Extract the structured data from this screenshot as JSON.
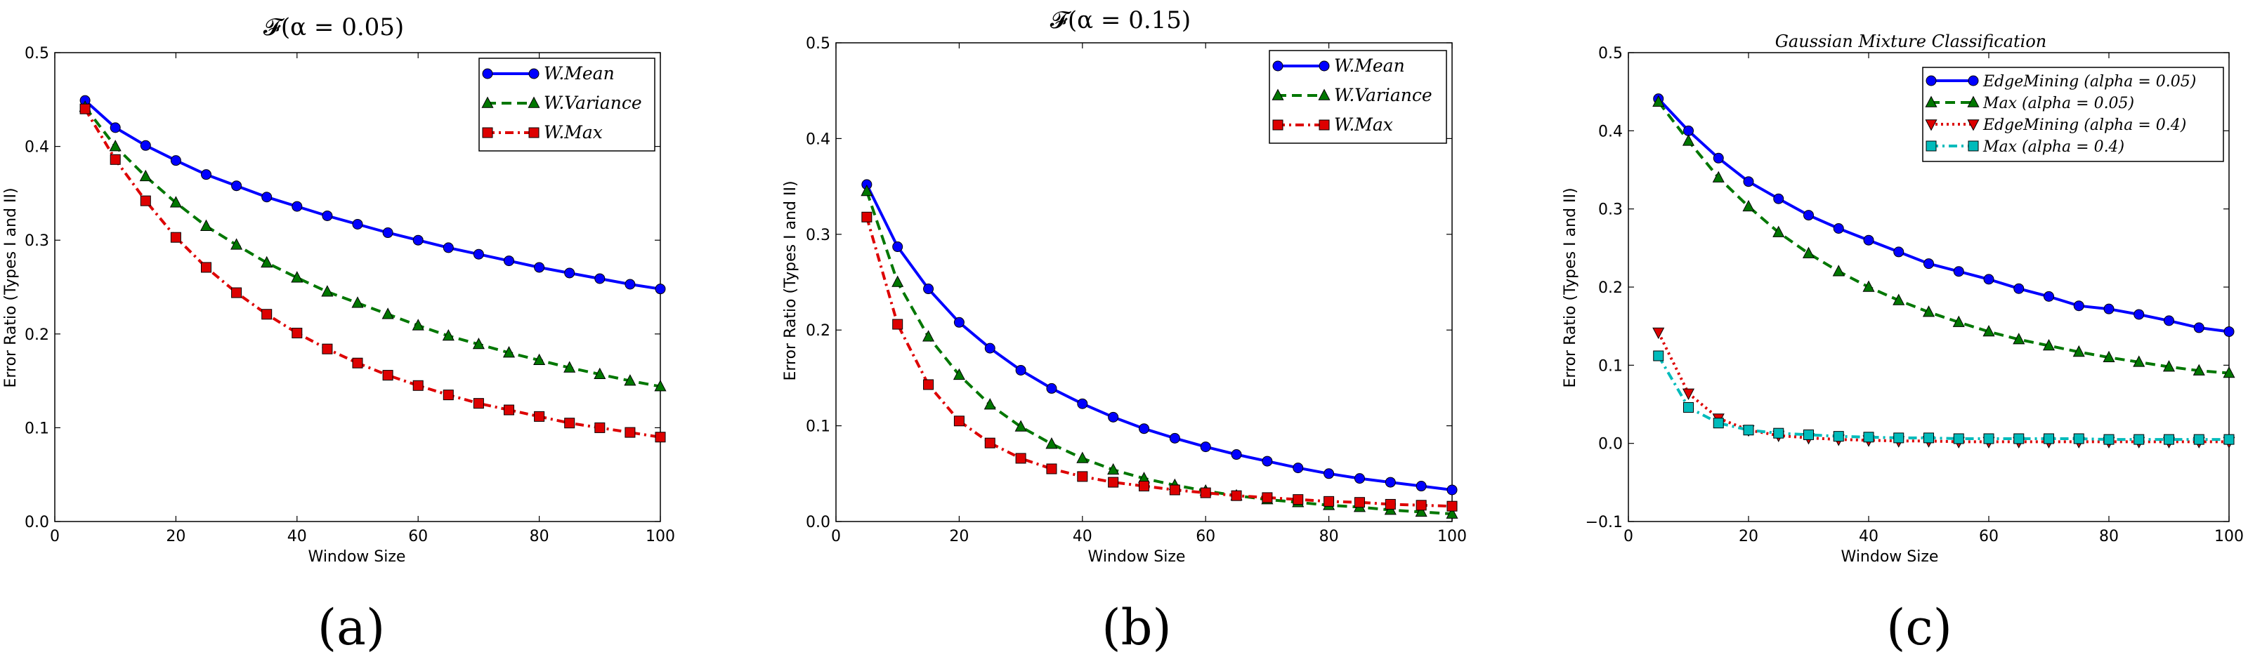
{
  "chart_data": [
    {
      "type": "line",
      "panel": "a",
      "title": "𝓕(α = 0.05)",
      "caption": "(a)",
      "xlabel": "Window Size",
      "ylabel": "Error Ratio (Types I and II)",
      "xlim": [
        0,
        100
      ],
      "ylim": [
        0.0,
        0.5
      ],
      "xticks": [
        0,
        20,
        40,
        60,
        80,
        100
      ],
      "yticks": [
        0.0,
        0.1,
        0.2,
        0.3,
        0.4,
        0.5
      ],
      "ytick_labels": [
        "0.0",
        "0.1",
        "0.2",
        "0.3",
        "0.4",
        "0.5"
      ],
      "legend_position": "top-right",
      "x": [
        5,
        10,
        15,
        20,
        25,
        30,
        35,
        40,
        45,
        50,
        55,
        60,
        65,
        70,
        75,
        80,
        85,
        90,
        95,
        100
      ],
      "series": [
        {
          "name": "W.Mean",
          "color": "#0000ff",
          "marker": "circle",
          "dash": "solid",
          "values": [
            0.449,
            0.42,
            0.401,
            0.385,
            0.37,
            0.358,
            0.346,
            0.336,
            0.326,
            0.317,
            0.308,
            0.3,
            0.292,
            0.285,
            0.278,
            0.271,
            0.265,
            0.259,
            0.253,
            0.248
          ]
        },
        {
          "name": "W.Variance",
          "color": "#007700",
          "marker": "triangle-up",
          "dash": "dashed",
          "values": [
            0.442,
            0.4,
            0.368,
            0.34,
            0.315,
            0.295,
            0.276,
            0.26,
            0.245,
            0.233,
            0.221,
            0.209,
            0.198,
            0.189,
            0.18,
            0.172,
            0.164,
            0.157,
            0.15,
            0.144
          ]
        },
        {
          "name": "W.Max",
          "color": "#dd0000",
          "marker": "square",
          "dash": "dashdot",
          "values": [
            0.44,
            0.386,
            0.342,
            0.303,
            0.271,
            0.244,
            0.221,
            0.201,
            0.184,
            0.169,
            0.156,
            0.145,
            0.135,
            0.126,
            0.119,
            0.112,
            0.105,
            0.1,
            0.095,
            0.09
          ]
        }
      ]
    },
    {
      "type": "line",
      "panel": "b",
      "title": "𝓕(α = 0.15)",
      "caption": "(b)",
      "xlabel": "Window Size",
      "ylabel": "Error Ratio (Types I and II)",
      "xlim": [
        0,
        100
      ],
      "ylim": [
        0.0,
        0.5
      ],
      "xticks": [
        0,
        20,
        40,
        60,
        80,
        100
      ],
      "yticks": [
        0.0,
        0.1,
        0.2,
        0.3,
        0.4,
        0.5
      ],
      "ytick_labels": [
        "0.0",
        "0.1",
        "0.2",
        "0.3",
        "0.4",
        "0.5"
      ],
      "legend_position": "top-right",
      "x": [
        5,
        10,
        15,
        20,
        25,
        30,
        35,
        40,
        45,
        50,
        55,
        60,
        65,
        70,
        75,
        80,
        85,
        90,
        95,
        100
      ],
      "series": [
        {
          "name": "W.Mean",
          "color": "#0000ff",
          "marker": "circle",
          "dash": "solid",
          "values": [
            0.352,
            0.287,
            0.243,
            0.208,
            0.181,
            0.158,
            0.139,
            0.123,
            0.109,
            0.097,
            0.087,
            0.078,
            0.07,
            0.063,
            0.056,
            0.05,
            0.045,
            0.041,
            0.037,
            0.033
          ]
        },
        {
          "name": "W.Variance",
          "color": "#007700",
          "marker": "triangle-up",
          "dash": "dashed",
          "values": [
            0.345,
            0.25,
            0.193,
            0.153,
            0.122,
            0.099,
            0.081,
            0.066,
            0.054,
            0.045,
            0.038,
            0.032,
            0.027,
            0.023,
            0.02,
            0.017,
            0.015,
            0.012,
            0.01,
            0.008
          ]
        },
        {
          "name": "W.Max",
          "color": "#dd0000",
          "marker": "square",
          "dash": "dashdot",
          "values": [
            0.318,
            0.206,
            0.143,
            0.105,
            0.082,
            0.066,
            0.055,
            0.047,
            0.041,
            0.037,
            0.033,
            0.03,
            0.027,
            0.025,
            0.023,
            0.021,
            0.02,
            0.018,
            0.017,
            0.016
          ]
        }
      ]
    },
    {
      "type": "line",
      "panel": "c",
      "title": "Gaussian Mixture Classification",
      "caption": "(c)",
      "xlabel": "Window Size",
      "ylabel": "Error Ratio (Types I and II)",
      "xlim": [
        0,
        100
      ],
      "ylim": [
        -0.1,
        0.5
      ],
      "xticks": [
        0,
        20,
        40,
        60,
        80,
        100
      ],
      "yticks": [
        -0.1,
        0.0,
        0.1,
        0.2,
        0.3,
        0.4,
        0.5
      ],
      "ytick_labels": [
        "−0.1",
        "0.0",
        "0.1",
        "0.2",
        "0.3",
        "0.4",
        "0.5"
      ],
      "legend_position": "top-right",
      "x": [
        5,
        10,
        15,
        20,
        25,
        30,
        35,
        40,
        45,
        50,
        55,
        60,
        65,
        70,
        75,
        80,
        85,
        90,
        95,
        100
      ],
      "series": [
        {
          "name": "EdgeMining (alpha = 0.05)",
          "color": "#0000ff",
          "marker": "circle",
          "dash": "solid",
          "values": [
            0.441,
            0.4,
            0.365,
            0.335,
            0.313,
            0.292,
            0.275,
            0.26,
            0.245,
            0.23,
            0.22,
            0.21,
            0.198,
            0.188,
            0.176,
            0.172,
            0.165,
            0.157,
            0.148,
            0.143
          ]
        },
        {
          "name": "Max (alpha = 0.05)",
          "color": "#007700",
          "marker": "triangle-up",
          "dash": "dashed",
          "values": [
            0.437,
            0.387,
            0.34,
            0.303,
            0.27,
            0.243,
            0.22,
            0.2,
            0.183,
            0.168,
            0.155,
            0.143,
            0.133,
            0.125,
            0.117,
            0.11,
            0.104,
            0.098,
            0.093,
            0.09
          ]
        },
        {
          "name": "EdgeMining (alpha = 0.4)",
          "color": "#dd0000",
          "marker": "triangle-down",
          "dash": "dotted",
          "values": [
            0.142,
            0.064,
            0.032,
            0.017,
            0.01,
            0.007,
            0.005,
            0.004,
            0.003,
            0.003,
            0.002,
            0.002,
            0.002,
            0.002,
            0.002,
            0.002,
            0.002,
            0.002,
            0.002,
            0.002
          ]
        },
        {
          "name": "Max (alpha = 0.4)",
          "color": "#00bbbb",
          "marker": "square",
          "dash": "dashdot",
          "values": [
            0.112,
            0.046,
            0.026,
            0.017,
            0.013,
            0.011,
            0.009,
            0.008,
            0.007,
            0.007,
            0.006,
            0.006,
            0.006,
            0.006,
            0.006,
            0.005,
            0.005,
            0.005,
            0.005,
            0.005
          ]
        }
      ]
    }
  ]
}
